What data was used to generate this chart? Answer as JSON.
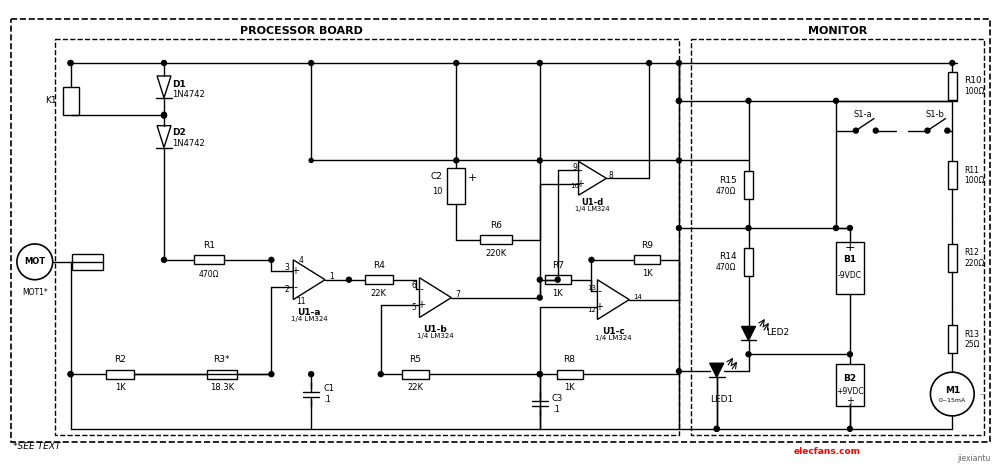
{
  "title": "",
  "bg_color": "#ffffff",
  "processor_board_label": "PROCESSOR BOARD",
  "monitor_label": "MONITOR",
  "watermark": "elecfans.com",
  "watermark2": "jiexiantu",
  "see_text": "*SEE TEXT",
  "fig_width": 10.04,
  "fig_height": 4.67,
  "dpi": 100
}
